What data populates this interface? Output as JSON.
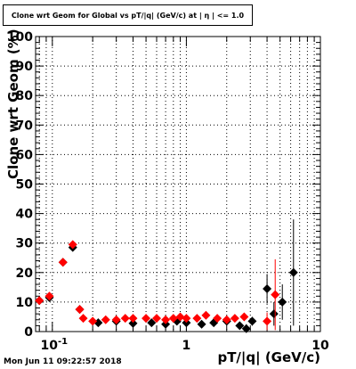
{
  "title": "Clone wrt Geom for Global vs pT/|q| (GeV/c) at | η | <= 1.0",
  "timestamp": "Mon Jun 11 09:22:57 2018",
  "colors": {
    "series_black": "#000000",
    "series_red": "#ff0000",
    "grid": "#000000",
    "frame": "#000000"
  },
  "chart_data": {
    "type": "scatter",
    "title": "Clone wrt Geom for Global vs pT/|q| (GeV/c) at | η | <= 1.0",
    "xlabel": "pT/|q| (GeV/c)",
    "ylabel": "Clone wrt Geom (%)",
    "x_scale": "log",
    "xlim": [
      0.075,
      10
    ],
    "ylim": [
      0,
      100
    ],
    "grid": true,
    "x_tick_labels": [
      {
        "v": 0.1,
        "t": "10^-1"
      },
      {
        "v": 1,
        "t": "1"
      },
      {
        "v": 10,
        "t": "10"
      }
    ],
    "y_tick_labels": [
      0,
      10,
      20,
      30,
      40,
      50,
      60,
      70,
      80,
      90,
      100
    ],
    "series": [
      {
        "color": "#000000",
        "points": [
          {
            "x": 0.08,
            "y": 10.5,
            "err": 0.8
          },
          {
            "x": 0.095,
            "y": 11.5,
            "err": 0.8
          },
          {
            "x": 0.12,
            "y": 23.5,
            "err": 0.8
          },
          {
            "x": 0.142,
            "y": 28.5,
            "err": 1.0
          },
          {
            "x": 0.16,
            "y": 7.5,
            "err": 0.8
          },
          {
            "x": 0.22,
            "y": 3.0,
            "err": 0.6
          },
          {
            "x": 0.3,
            "y": 3.5,
            "err": 0.6
          },
          {
            "x": 0.4,
            "y": 2.8,
            "err": 0.6
          },
          {
            "x": 0.55,
            "y": 3.0,
            "err": 0.6
          },
          {
            "x": 0.7,
            "y": 2.5,
            "err": 0.6
          },
          {
            "x": 0.85,
            "y": 3.5,
            "err": 0.6
          },
          {
            "x": 1.0,
            "y": 3.0,
            "err": 0.7
          },
          {
            "x": 1.3,
            "y": 2.5,
            "err": 0.8
          },
          {
            "x": 1.6,
            "y": 3.0,
            "err": 0.8
          },
          {
            "x": 2.0,
            "y": 3.5,
            "err": 1.0
          },
          {
            "x": 2.5,
            "y": 2.0,
            "err": 1.2
          },
          {
            "x": 2.8,
            "y": 1.0,
            "err": 1.5
          },
          {
            "x": 3.1,
            "y": 3.5,
            "err": 1.5
          },
          {
            "x": 4.0,
            "y": 14.5,
            "err": 5.0
          },
          {
            "x": 4.5,
            "y": 6.0,
            "err": 4.0
          },
          {
            "x": 5.2,
            "y": 10.0,
            "err": 6.0
          },
          {
            "x": 6.3,
            "y": 20.0,
            "err": 18.0
          }
        ]
      },
      {
        "color": "#ff0000",
        "points": [
          {
            "x": 0.08,
            "y": 10.5,
            "err": 0.8
          },
          {
            "x": 0.095,
            "y": 12.0,
            "err": 0.8
          },
          {
            "x": 0.12,
            "y": 23.5,
            "err": 0.8
          },
          {
            "x": 0.142,
            "y": 29.5,
            "err": 1.0
          },
          {
            "x": 0.16,
            "y": 7.5,
            "err": 0.8
          },
          {
            "x": 0.17,
            "y": 4.5,
            "err": 0.6
          },
          {
            "x": 0.2,
            "y": 3.5,
            "err": 0.5
          },
          {
            "x": 0.25,
            "y": 4.0,
            "err": 0.5
          },
          {
            "x": 0.3,
            "y": 4.0,
            "err": 0.5
          },
          {
            "x": 0.35,
            "y": 4.5,
            "err": 0.5
          },
          {
            "x": 0.4,
            "y": 4.5,
            "err": 0.5
          },
          {
            "x": 0.5,
            "y": 4.5,
            "err": 0.5
          },
          {
            "x": 0.6,
            "y": 4.5,
            "err": 0.5
          },
          {
            "x": 0.7,
            "y": 4.0,
            "err": 0.5
          },
          {
            "x": 0.8,
            "y": 4.5,
            "err": 0.6
          },
          {
            "x": 0.9,
            "y": 5.0,
            "err": 0.6
          },
          {
            "x": 1.0,
            "y": 4.5,
            "err": 0.6
          },
          {
            "x": 1.2,
            "y": 4.5,
            "err": 0.7
          },
          {
            "x": 1.4,
            "y": 5.5,
            "err": 0.8
          },
          {
            "x": 1.7,
            "y": 4.5,
            "err": 0.9
          },
          {
            "x": 2.0,
            "y": 4.0,
            "err": 1.0
          },
          {
            "x": 2.3,
            "y": 4.5,
            "err": 1.1
          },
          {
            "x": 2.7,
            "y": 5.0,
            "err": 1.3
          },
          {
            "x": 4.0,
            "y": 3.5,
            "err": 3.0
          },
          {
            "x": 4.6,
            "y": 12.5,
            "err": 12.0
          }
        ]
      }
    ]
  }
}
